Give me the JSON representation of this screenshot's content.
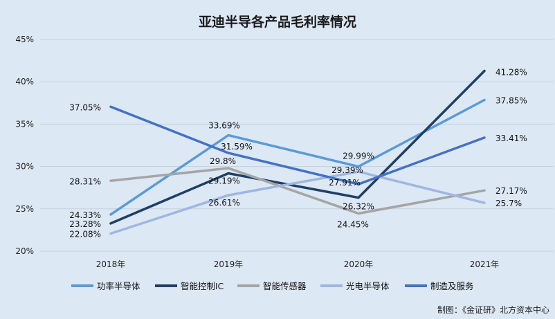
{
  "chart_data": {
    "type": "line",
    "title": "亚迪半导各产品毛利率情况",
    "categories": [
      "2018年",
      "2019年",
      "2020年",
      "2021年"
    ],
    "y_ticks": [
      "20%",
      "25%",
      "30%",
      "35%",
      "40%",
      "45%"
    ],
    "ylim": [
      20,
      45
    ],
    "grid": true,
    "legend_position": "bottom",
    "series": [
      {
        "name": "功率半导体",
        "color": "#5b9bd5",
        "values": [
          24.33,
          33.69,
          29.99,
          37.85
        ],
        "labels": [
          "24.33%",
          "33.69%",
          "29.99%",
          "37.85%"
        ]
      },
      {
        "name": "智能控制IC",
        "color": "#1f3f66",
        "values": [
          23.28,
          29.19,
          26.32,
          41.28
        ],
        "labels": [
          "23.28%",
          "29.19%",
          "26.32%",
          "41.28%"
        ]
      },
      {
        "name": "智能传感器",
        "color": "#a5a5a5",
        "values": [
          28.31,
          29.8,
          24.45,
          27.17
        ],
        "labels": [
          "28.31%",
          "29.8%",
          "24.45%",
          "27.17%"
        ]
      },
      {
        "name": "光电半导体",
        "color": "#9fb6e0",
        "values": [
          22.08,
          26.61,
          29.39,
          25.7
        ],
        "labels": [
          "22.08%",
          "26.61%",
          "29.39%",
          "25.7%"
        ]
      },
      {
        "name": "制造及服务",
        "color": "#4472c4",
        "values": [
          37.05,
          31.59,
          27.91,
          33.41
        ],
        "labels": [
          "37.05%",
          "31.59%",
          "27.91%",
          "33.41%"
        ]
      }
    ],
    "source": "制图：《金证研》北方资本中心"
  }
}
